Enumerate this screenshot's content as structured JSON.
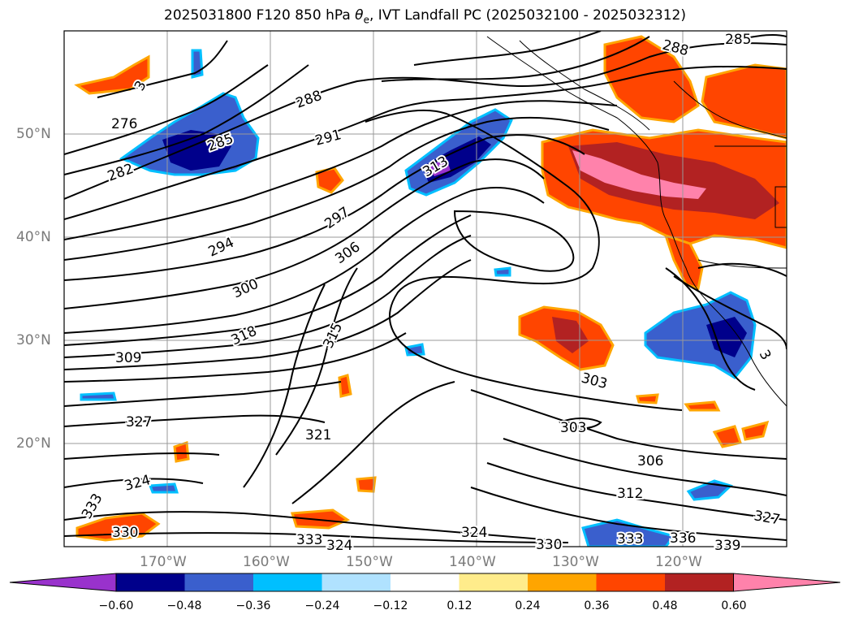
{
  "title": {
    "prefix": "2025031800 F120 850 hPa ",
    "theta": "θ",
    "sub": "e",
    "suffix": ", IVT Landfall PC (2025032100 - 2025032312)"
  },
  "lat_labels": [
    "50°N",
    "40°N",
    "30°N",
    "20°N"
  ],
  "lon_labels": [
    "170°W",
    "160°W",
    "150°W",
    "140°W",
    "130°W",
    "120°W"
  ],
  "contour_labels": [
    "285",
    "288",
    "276",
    "282",
    "285",
    "288",
    "291",
    "294",
    "297",
    "300",
    "306",
    "309",
    "318",
    "315",
    "313",
    "303",
    "303",
    "306",
    "312",
    "324",
    "321",
    "327",
    "324",
    "333",
    "330",
    "333",
    "324",
    "330",
    "333",
    "336",
    "339",
    "327",
    "3",
    "3"
  ],
  "colorbar": {
    "ticks": [
      "−0.60",
      "−0.48",
      "−0.36",
      "−0.24",
      "−0.12",
      "0.12",
      "0.24",
      "0.36",
      "0.48",
      "0.60"
    ],
    "colors": [
      "#9932cc",
      "#00008b",
      "#3a5fcd",
      "#00bfff",
      "#b0e2ff",
      "#ffffff",
      "#ffec8b",
      "#ffa500",
      "#ff4500",
      "#b22222",
      "#ff82ab"
    ]
  }
}
